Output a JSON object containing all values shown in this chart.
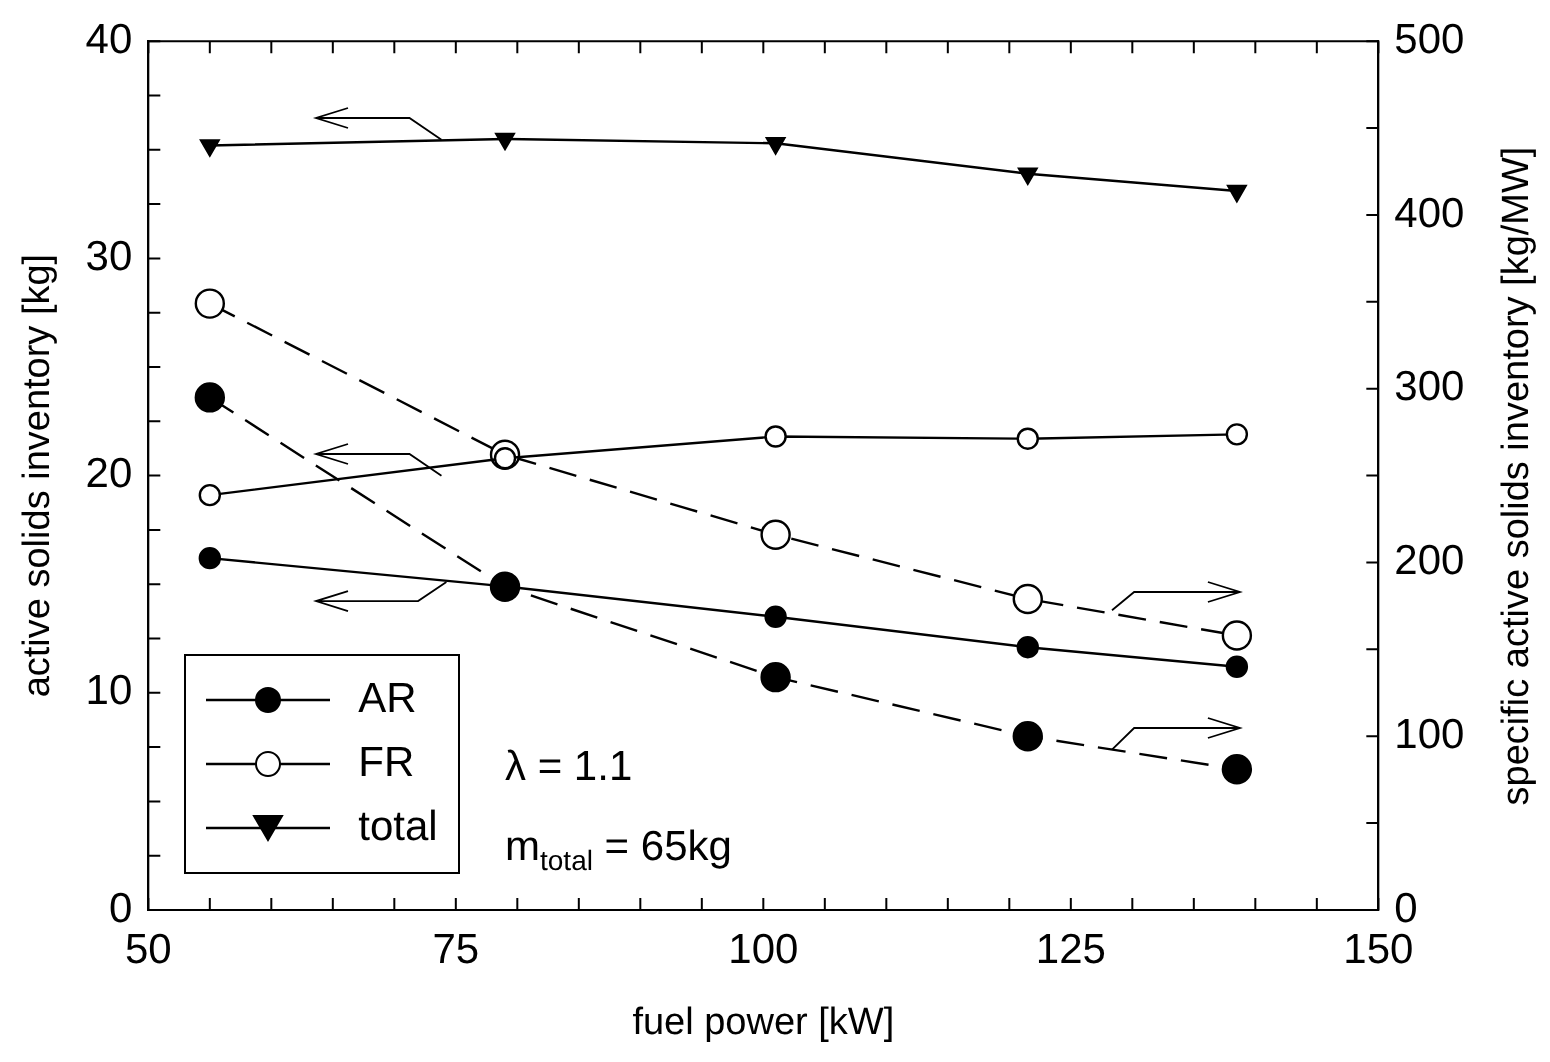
{
  "chart_data": {
    "type": "line",
    "xlabel": "fuel power [kW]",
    "ylabel": "active solids inventory [kg]",
    "y2label": "specific active solids inventory [kg/MW]",
    "x": [
      55,
      79,
      101,
      121.5,
      138.5
    ],
    "series": [
      {
        "name": "AR",
        "color": "#000000",
        "marker": "circle",
        "line_style": "solid",
        "values": [
          16.2,
          14.9,
          13.5,
          12.1,
          11.2
        ]
      },
      {
        "name": "FR",
        "color": "#000000",
        "marker": "circle",
        "line_style": "solid",
        "values": [
          19.1,
          20.8,
          21.8,
          21.7,
          21.9
        ]
      },
      {
        "name": "total",
        "color": "#000000",
        "marker": "triangle",
        "line_style": "solid",
        "values": [
          35.2,
          35.5,
          35.3,
          33.9,
          33.1
        ]
      },
      {
        "color": "#000000",
        "marker": "circle",
        "line_style": "dashed",
        "axis": "y2",
        "values": [
          295,
          186,
          134,
          100,
          81
        ]
      },
      {
        "color": "#000000",
        "marker": "circle",
        "line_style": "dashed",
        "axis": "y2",
        "values": [
          349,
          262,
          216,
          179,
          158
        ]
      }
    ],
    "xlim": [
      50,
      150
    ],
    "xticks": [
      50,
      {
        "value": 55,
        "label": null
      },
      {
        "value": 60,
        "label": null
      },
      {
        "value": 65,
        "label": null
      },
      {
        "value": 70,
        "label": null
      },
      75,
      {
        "value": 80,
        "label": null
      },
      {
        "value": 85,
        "label": null
      },
      {
        "value": 90,
        "label": null
      },
      {
        "value": 95,
        "label": null
      },
      100,
      {
        "value": 105,
        "label": null
      },
      {
        "value": 110,
        "label": null
      },
      {
        "value": 115,
        "label": null
      },
      {
        "value": 120,
        "label": null
      },
      125,
      {
        "value": 130,
        "label": null
      },
      {
        "value": 135,
        "label": null
      },
      {
        "value": 140,
        "label": null
      },
      {
        "value": 145,
        "label": null
      },
      150
    ],
    "ylim": [
      0,
      40
    ],
    "yticks": [
      0,
      {
        "value": 2.5,
        "label": null
      },
      {
        "value": 5,
        "label": null
      },
      {
        "value": 7.5,
        "label": null
      },
      10,
      {
        "value": 12.5,
        "label": null
      },
      {
        "value": 15,
        "label": null
      },
      {
        "value": 17.5,
        "label": null
      },
      20,
      {
        "value": 22.5,
        "label": null
      },
      {
        "value": 25,
        "label": null
      },
      {
        "value": 27.5,
        "label": null
      },
      30,
      {
        "value": 32.5,
        "label": null
      },
      {
        "value": 35,
        "label": null
      },
      {
        "value": 37.5,
        "label": null
      },
      40
    ],
    "y2lim": [
      0,
      500
    ],
    "y2ticks": [
      0,
      {
        "value": 50,
        "label": null
      },
      100,
      {
        "value": 150,
        "label": null
      },
      200,
      {
        "value": 250,
        "label": null
      },
      300,
      {
        "value": 350,
        "label": null
      },
      400,
      {
        "value": 450,
        "label": null
      },
      500
    ],
    "annotations": [
      "λ = 1.1",
      "m$_{total}$ = 65kg"
    ],
    "grid": false,
    "legend": "bottom left"
  }
}
